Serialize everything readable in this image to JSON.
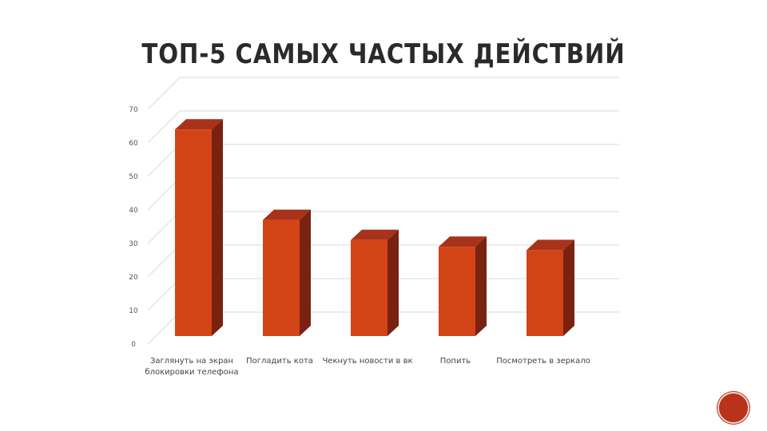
{
  "chart_data": {
    "type": "bar",
    "title": "ТОП-5 САМЫХ ЧАСТЫХ ДЕЙСТВИЙ",
    "categories": [
      [
        "Заглянуть на экран",
        "блокировки телефона"
      ],
      [
        "Погладить кота"
      ],
      [
        "Чекнуть новости в вк"
      ],
      [
        "Попить"
      ],
      [
        "Посмотреть в зеркало"
      ]
    ],
    "values": [
      64,
      37,
      31,
      29,
      28
    ],
    "ylim": [
      0,
      70
    ],
    "yticks": [
      0,
      10,
      20,
      30,
      40,
      50,
      60,
      70
    ],
    "grid": true,
    "colors": {
      "bar_front": "#d24416",
      "bar_side": "#7a2211",
      "bar_top": "#a8321a",
      "grid": "#d9d9d9"
    }
  }
}
